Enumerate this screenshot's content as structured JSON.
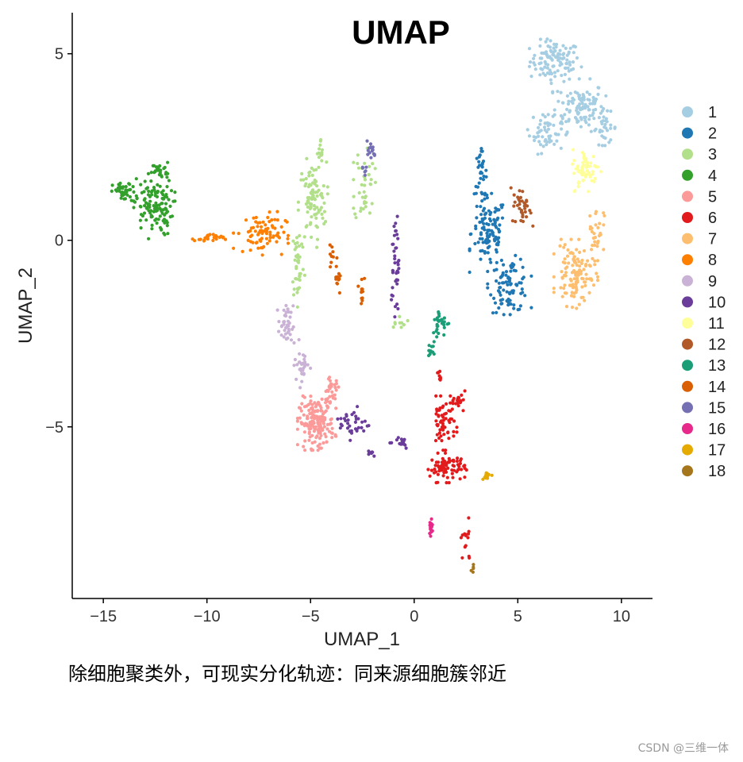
{
  "chart_data": {
    "type": "scatter",
    "title": "UMAP",
    "xlabel": "UMAP_1",
    "ylabel": "UMAP_2",
    "xlim": [
      -16.5,
      11.5
    ],
    "ylim": [
      -9.6,
      6.1
    ],
    "x_ticks": [
      -15,
      -10,
      -5,
      0,
      5,
      10
    ],
    "y_ticks": [
      5,
      0,
      -5
    ],
    "x_tick_labels": [
      "−15",
      "−10",
      "−5",
      "0",
      "5",
      "10"
    ],
    "y_tick_labels": [
      "5",
      "0",
      "−5"
    ],
    "grid": false,
    "legend_position": "right",
    "series": [
      {
        "name": "1",
        "color": "#a6cee3",
        "clusters": [
          {
            "center": [
              6.8,
              4.8
            ],
            "spread": [
              1.0,
              0.45
            ],
            "count": 110
          },
          {
            "center": [
              8.0,
              3.6
            ],
            "spread": [
              1.0,
              0.55
            ],
            "count": 110
          },
          {
            "center": [
              6.4,
              2.9
            ],
            "spread": [
              0.7,
              0.45
            ],
            "count": 55
          },
          {
            "center": [
              9.2,
              3.0
            ],
            "spread": [
              0.5,
              0.35
            ],
            "count": 30
          }
        ]
      },
      {
        "name": "2",
        "color": "#1f78b4",
        "clusters": [
          {
            "center": [
              3.2,
              1.8
            ],
            "spread": [
              0.25,
              0.5
            ],
            "count": 30
          },
          {
            "center": [
              3.6,
              0.2
            ],
            "spread": [
              0.7,
              0.8
            ],
            "count": 110
          },
          {
            "center": [
              4.6,
              -1.2
            ],
            "spread": [
              0.8,
              0.6
            ],
            "count": 90
          }
        ]
      },
      {
        "name": "3",
        "color": "#b2df8a",
        "clusters": [
          {
            "center": [
              -4.9,
              1.0
            ],
            "spread": [
              0.55,
              0.9
            ],
            "count": 90
          },
          {
            "center": [
              -5.6,
              -0.6
            ],
            "spread": [
              0.25,
              0.9
            ],
            "count": 40
          },
          {
            "center": [
              -4.5,
              2.3
            ],
            "spread": [
              0.15,
              0.35
            ],
            "count": 15
          },
          {
            "center": [
              -2.4,
              1.5
            ],
            "spread": [
              0.4,
              0.9
            ],
            "count": 40
          },
          {
            "center": [
              -0.7,
              -2.1
            ],
            "spread": [
              0.35,
              0.2
            ],
            "count": 10
          }
        ]
      },
      {
        "name": "4",
        "color": "#33a02c",
        "clusters": [
          {
            "center": [
              -12.6,
              0.9
            ],
            "spread": [
              0.8,
              0.65
            ],
            "count": 130
          },
          {
            "center": [
              -14.0,
              1.3
            ],
            "spread": [
              0.45,
              0.2
            ],
            "count": 40
          },
          {
            "center": [
              -12.3,
              1.9
            ],
            "spread": [
              0.4,
              0.15
            ],
            "count": 25
          }
        ]
      },
      {
        "name": "5",
        "color": "#fb9a99",
        "clusters": [
          {
            "center": [
              -4.7,
              -4.9
            ],
            "spread": [
              0.7,
              0.55
            ],
            "count": 170
          },
          {
            "center": [
              -4.0,
              -4.0
            ],
            "spread": [
              0.35,
              0.25
            ],
            "count": 30
          }
        ]
      },
      {
        "name": "6",
        "color": "#e31a1c",
        "clusters": [
          {
            "center": [
              1.6,
              -6.1
            ],
            "spread": [
              0.7,
              0.3
            ],
            "count": 80
          },
          {
            "center": [
              1.4,
              -4.9
            ],
            "spread": [
              0.5,
              0.55
            ],
            "count": 60
          },
          {
            "center": [
              2.2,
              -4.3
            ],
            "spread": [
              0.25,
              0.2
            ],
            "count": 20
          },
          {
            "center": [
              2.5,
              -8.1
            ],
            "spread": [
              0.25,
              0.5
            ],
            "count": 14
          },
          {
            "center": [
              1.2,
              -3.7
            ],
            "spread": [
              0.15,
              0.3
            ],
            "count": 8
          }
        ]
      },
      {
        "name": "7",
        "color": "#fdbf6f",
        "clusters": [
          {
            "center": [
              7.8,
              -0.9
            ],
            "spread": [
              0.8,
              0.7
            ],
            "count": 120
          },
          {
            "center": [
              8.8,
              0.3
            ],
            "spread": [
              0.3,
              0.5
            ],
            "count": 25
          }
        ]
      },
      {
        "name": "8",
        "color": "#ff7f00",
        "clusters": [
          {
            "center": [
              -7.4,
              0.2
            ],
            "spread": [
              1.0,
              0.45
            ],
            "count": 80
          },
          {
            "center": [
              -9.9,
              0.05
            ],
            "spread": [
              0.6,
              0.1
            ],
            "count": 25
          }
        ]
      },
      {
        "name": "9",
        "color": "#cab2d6",
        "clusters": [
          {
            "center": [
              -6.2,
              -2.3
            ],
            "spread": [
              0.3,
              0.45
            ],
            "count": 40
          },
          {
            "center": [
              -5.4,
              -3.3
            ],
            "spread": [
              0.3,
              0.5
            ],
            "count": 30
          }
        ]
      },
      {
        "name": "10",
        "color": "#6a3d9a",
        "clusters": [
          {
            "center": [
              -0.9,
              -0.6
            ],
            "spread": [
              0.15,
              1.1
            ],
            "count": 40
          },
          {
            "center": [
              -2.9,
              -4.9
            ],
            "spread": [
              0.6,
              0.35
            ],
            "count": 35
          },
          {
            "center": [
              -0.8,
              -5.4
            ],
            "spread": [
              0.6,
              0.15
            ],
            "count": 15
          },
          {
            "center": [
              -2.1,
              -5.7
            ],
            "spread": [
              0.2,
              0.08
            ],
            "count": 8
          }
        ]
      },
      {
        "name": "11",
        "color": "#ffff99",
        "clusters": [
          {
            "center": [
              8.3,
              1.9
            ],
            "spread": [
              0.55,
              0.45
            ],
            "count": 60
          }
        ]
      },
      {
        "name": "12",
        "color": "#b15928",
        "clusters": [
          {
            "center": [
              5.2,
              0.9
            ],
            "spread": [
              0.4,
              0.4
            ],
            "count": 35
          }
        ]
      },
      {
        "name": "13",
        "color": "#1b9e77",
        "clusters": [
          {
            "center": [
              1.3,
              -2.2
            ],
            "spread": [
              0.35,
              0.3
            ],
            "count": 30
          },
          {
            "center": [
              0.8,
              -2.9
            ],
            "spread": [
              0.12,
              0.3
            ],
            "count": 12
          }
        ]
      },
      {
        "name": "14",
        "color": "#d95f02",
        "clusters": [
          {
            "center": [
              -3.7,
              -1.0
            ],
            "spread": [
              0.1,
              0.4
            ],
            "count": 15
          },
          {
            "center": [
              -2.5,
              -1.3
            ],
            "spread": [
              0.15,
              0.3
            ],
            "count": 12
          },
          {
            "center": [
              -4.0,
              -0.4
            ],
            "spread": [
              0.1,
              0.25
            ],
            "count": 8
          }
        ]
      },
      {
        "name": "15",
        "color": "#7570b3",
        "clusters": [
          {
            "center": [
              -2.1,
              2.4
            ],
            "spread": [
              0.2,
              0.2
            ],
            "count": 15
          },
          {
            "center": [
              -2.4,
              1.9
            ],
            "spread": [
              0.1,
              0.2
            ],
            "count": 6
          }
        ]
      },
      {
        "name": "16",
        "color": "#e7298a",
        "clusters": [
          {
            "center": [
              0.8,
              -7.7
            ],
            "spread": [
              0.1,
              0.25
            ],
            "count": 18
          }
        ]
      },
      {
        "name": "17",
        "color": "#e6ab02",
        "clusters": [
          {
            "center": [
              3.5,
              -6.3
            ],
            "spread": [
              0.2,
              0.08
            ],
            "count": 12
          }
        ]
      },
      {
        "name": "18",
        "color": "#a6761d",
        "clusters": [
          {
            "center": [
              2.8,
              -8.8
            ],
            "spread": [
              0.08,
              0.12
            ],
            "count": 5
          }
        ]
      }
    ]
  },
  "caption": "除细胞聚类外，可现实分化轨迹：同来源细胞簇邻近",
  "watermark": "CSDN @三维一体"
}
